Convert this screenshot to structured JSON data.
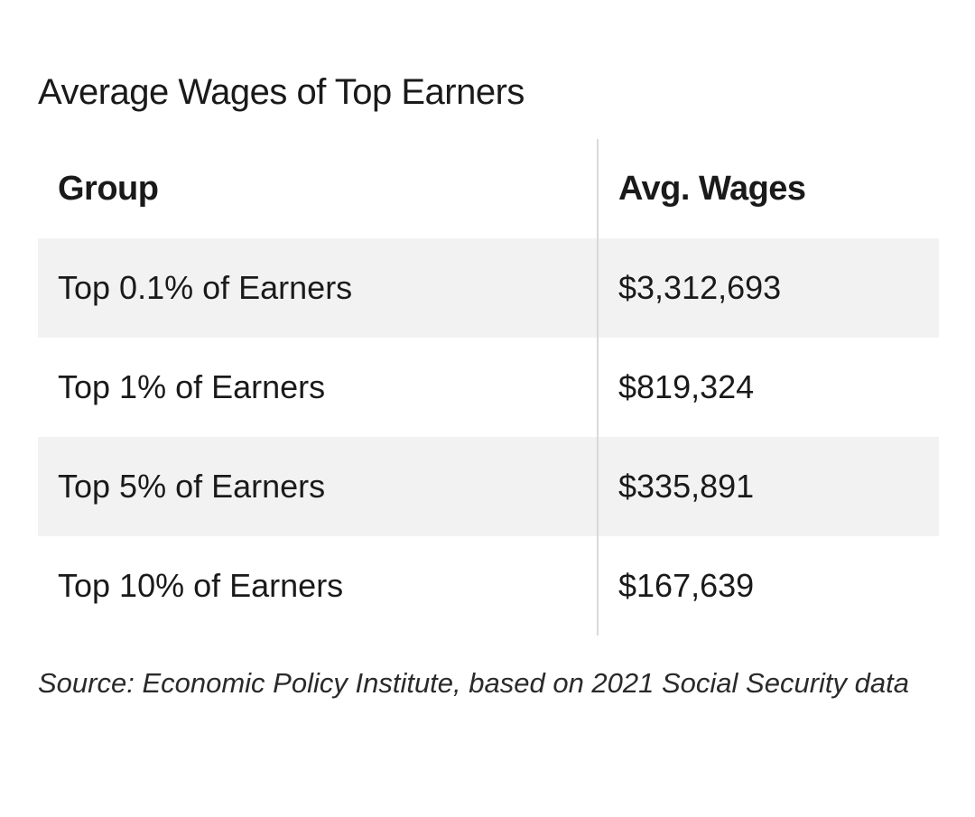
{
  "title": "Average Wages of Top Earners",
  "table": {
    "headers": {
      "group": "Group",
      "wages": "Avg. Wages"
    },
    "rows": [
      {
        "group": "Top 0.1% of Earners",
        "wages": "$3,312,693"
      },
      {
        "group": "Top 1% of Earners",
        "wages": "$819,324"
      },
      {
        "group": "Top 5% of Earners",
        "wages": "$335,891"
      },
      {
        "group": "Top 10% of Earners",
        "wages": "$167,639"
      }
    ]
  },
  "source": "Source: Economic Policy Institute, based on 2021 Social Security data",
  "colors": {
    "shaded_row": "#f2f2f2",
    "divider": "#d9d9d9",
    "text": "#1a1a1a"
  }
}
